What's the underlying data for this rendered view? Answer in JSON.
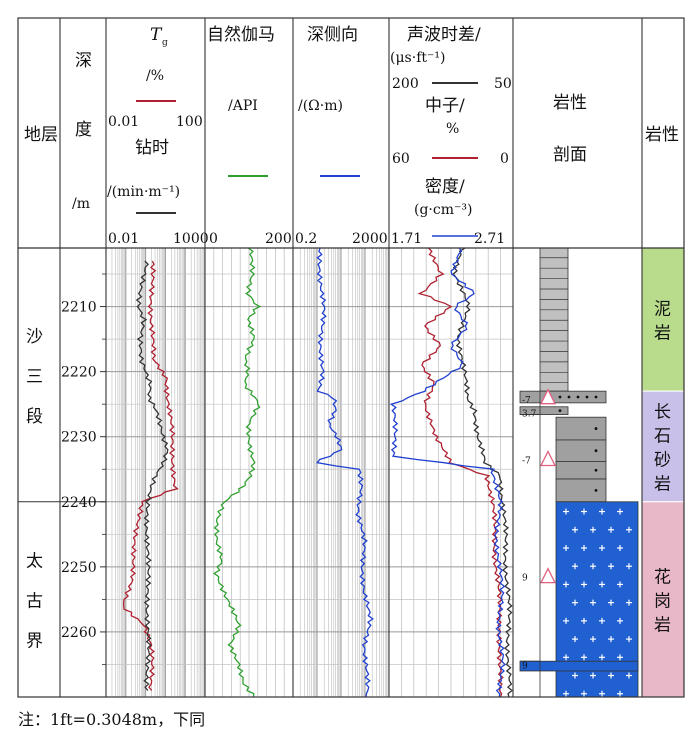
{
  "headers": {
    "strata": "地层",
    "depth": [
      "深",
      "度",
      "/m"
    ],
    "tg_symbol": "T",
    "tg_sub": "g",
    "tg_unit": "/%",
    "tg_range": [
      "0.01",
      "100"
    ],
    "drill_name": "钻时",
    "drill_unit": "/(min·m⁻¹)",
    "drill_range": [
      "0.01",
      "1000"
    ],
    "gr_name": "自然伽马",
    "gr_unit": "/API",
    "gr_range": [
      "0",
      "200"
    ],
    "res_name": "深侧向",
    "res_unit": "/(Ω·m)",
    "res_range": [
      "0.2",
      "2000"
    ],
    "ac_name": "声波时差/",
    "ac_unit": "(μs·ft⁻¹)",
    "ac_range": [
      "200",
      "50"
    ],
    "cnl_name": "中子/",
    "cnl_unit": "%",
    "cnl_range": [
      "60",
      "0"
    ],
    "den_name": "密度/",
    "den_unit": "(g·cm⁻³)",
    "den_range": [
      "1.71",
      "2.71"
    ],
    "profile": [
      "岩性",
      "剖面"
    ],
    "lith": "岩性"
  },
  "strata": [
    {
      "label": [
        "沙",
        "三",
        "段"
      ],
      "top": 2201,
      "bottom": 2240
    },
    {
      "label": [
        "太",
        "古",
        "界"
      ],
      "top": 2240,
      "bottom": 2270
    }
  ],
  "lithology": [
    {
      "label": [
        "泥",
        "岩"
      ],
      "top": 2201,
      "bottom": 2223,
      "color": "#b8dc8c"
    },
    {
      "label": [
        "长",
        "石",
        "砂",
        "岩"
      ],
      "top": 2223,
      "bottom": 2240,
      "color": "#c8c0e8"
    },
    {
      "label": [
        "花",
        "岗",
        "岩"
      ],
      "top": 2240,
      "bottom": 2270,
      "color": "#e8b8c8"
    }
  ],
  "profile_marks": [
    {
      "text": "-7",
      "depth": 2224.2
    },
    {
      "text": "3.7",
      "depth": 2226.3
    },
    {
      "text": "-7",
      "depth": 2233.5
    },
    {
      "text": "9",
      "depth": 2251.5
    },
    {
      "text": "9",
      "depth": 2265
    }
  ],
  "note": "注：1ft=0.3048m，下同",
  "colors": {
    "tg": "#b02030",
    "drill": "#333333",
    "gr": "#30a030",
    "res": "#2040d0",
    "ac": "#333333",
    "cnl": "#b02030",
    "den": "#2040d0",
    "mudstone": "#b8dc8c",
    "sandstone": "#c8c0e8",
    "granite": "#e8b8c8",
    "granite_profile": "#2060d0",
    "sand_profile": "#a0a0a0"
  },
  "chart_data": {
    "type": "line",
    "depth_range": [
      2201,
      2270
    ],
    "depth_ticks": [
      2210,
      2220,
      2230,
      2240,
      2250,
      2260
    ],
    "series": [
      {
        "name": "Tg",
        "unit": "%",
        "range": [
          0.01,
          100
        ],
        "log": true,
        "track": 1,
        "points": [
          [
            2203,
            0.7
          ],
          [
            2210,
            0.7
          ],
          [
            2218,
            0.75
          ],
          [
            2221,
            3.0
          ],
          [
            2226,
            3.5
          ],
          [
            2230,
            4.5
          ],
          [
            2234,
            5.5
          ],
          [
            2238,
            6.0
          ],
          [
            2240,
            0.25
          ],
          [
            2243,
            0.2
          ],
          [
            2247,
            0.15
          ],
          [
            2252,
            0.1
          ],
          [
            2256,
            0.05
          ],
          [
            2259,
            0.4
          ],
          [
            2262,
            0.6
          ],
          [
            2266,
            0.7
          ],
          [
            2269,
            0.7
          ]
        ]
      },
      {
        "name": "钻时",
        "unit": "min/m",
        "range": [
          0.01,
          1000
        ],
        "log": true,
        "track": 1,
        "points": [
          [
            2203,
            1.0
          ],
          [
            2205,
            0.8
          ],
          [
            2208,
            0.6
          ],
          [
            2210,
            0.5
          ],
          [
            2212,
            0.8
          ],
          [
            2215,
            0.45
          ],
          [
            2218,
            0.6
          ],
          [
            2220,
            1.2
          ],
          [
            2222,
            2.0
          ],
          [
            2224,
            1.4
          ],
          [
            2226,
            3.0
          ],
          [
            2229,
            6.0
          ],
          [
            2232,
            15.0
          ],
          [
            2234,
            9.0
          ],
          [
            2236,
            3.0
          ],
          [
            2238,
            1.5
          ],
          [
            2240,
            1.2
          ],
          [
            2245,
            1.3
          ],
          [
            2250,
            1.2
          ],
          [
            2255,
            1.4
          ],
          [
            2260,
            1.2
          ],
          [
            2265,
            1.3
          ],
          [
            2269,
            1.3
          ]
        ]
      },
      {
        "name": "自然伽马",
        "unit": "API",
        "range": [
          0,
          200
        ],
        "log": false,
        "track": 2,
        "points": [
          [
            2201,
            100
          ],
          [
            2205,
            110
          ],
          [
            2208,
            100
          ],
          [
            2210,
            120
          ],
          [
            2212,
            95
          ],
          [
            2215,
            110
          ],
          [
            2218,
            95
          ],
          [
            2220,
            100
          ],
          [
            2222,
            90
          ],
          [
            2225,
            120
          ],
          [
            2228,
            100
          ],
          [
            2232,
            105
          ],
          [
            2234,
            110
          ],
          [
            2236,
            100
          ],
          [
            2238,
            80
          ],
          [
            2240,
            45
          ],
          [
            2243,
            30
          ],
          [
            2246,
            25
          ],
          [
            2249,
            35
          ],
          [
            2251,
            25
          ],
          [
            2253,
            40
          ],
          [
            2256,
            60
          ],
          [
            2259,
            75
          ],
          [
            2262,
            55
          ],
          [
            2265,
            80
          ],
          [
            2268,
            90
          ],
          [
            2270,
            110
          ]
        ]
      },
      {
        "name": "深侧向",
        "unit": "Ω·m",
        "range": [
          0.2,
          2000
        ],
        "log": true,
        "track": 3,
        "points": [
          [
            2201,
            2.5
          ],
          [
            2206,
            3.0
          ],
          [
            2210,
            3.5
          ],
          [
            2215,
            3.0
          ],
          [
            2220,
            3.5
          ],
          [
            2223,
            2.0
          ],
          [
            2224,
            9.0
          ],
          [
            2226,
            12.0
          ],
          [
            2228,
            7.0
          ],
          [
            2230,
            15.0
          ],
          [
            2232,
            20.0
          ],
          [
            2234,
            1.5
          ],
          [
            2235,
            100.0
          ],
          [
            2238,
            150.0
          ],
          [
            2242,
            110.0
          ],
          [
            2246,
            170.0
          ],
          [
            2250,
            160.0
          ],
          [
            2254,
            200.0
          ],
          [
            2258,
            300.0
          ],
          [
            2262,
            200.0
          ],
          [
            2266,
            260.0
          ],
          [
            2270,
            220.0
          ]
        ]
      },
      {
        "name": "声波时差",
        "unit": "μs/ft",
        "range": [
          200,
          50
        ],
        "track": 4,
        "points": [
          [
            2201,
            110
          ],
          [
            2205,
            120
          ],
          [
            2210,
            105
          ],
          [
            2215,
            115
          ],
          [
            2220,
            110
          ],
          [
            2224,
            105
          ],
          [
            2226,
            95
          ],
          [
            2230,
            93
          ],
          [
            2234,
            85
          ],
          [
            2236,
            65
          ],
          [
            2240,
            62
          ],
          [
            2245,
            60
          ],
          [
            2250,
            58
          ],
          [
            2255,
            56
          ],
          [
            2260,
            55
          ],
          [
            2265,
            56
          ],
          [
            2270,
            55
          ]
        ]
      },
      {
        "name": "中子",
        "unit": "%",
        "range": [
          60,
          0
        ],
        "track": 4,
        "points": [
          [
            2201,
            40
          ],
          [
            2205,
            35
          ],
          [
            2208,
            45
          ],
          [
            2210,
            30
          ],
          [
            2213,
            42
          ],
          [
            2216,
            35
          ],
          [
            2219,
            45
          ],
          [
            2222,
            38
          ],
          [
            2225,
            42
          ],
          [
            2230,
            38
          ],
          [
            2234,
            30
          ],
          [
            2236,
            12
          ],
          [
            2240,
            10
          ],
          [
            2245,
            9
          ],
          [
            2250,
            8
          ],
          [
            2255,
            7
          ],
          [
            2260,
            6
          ],
          [
            2265,
            7
          ],
          [
            2270,
            6
          ]
        ]
      },
      {
        "name": "密度",
        "unit": "g/cm³",
        "range": [
          1.71,
          2.71
        ],
        "track": 4,
        "points": [
          [
            2201,
            2.3
          ],
          [
            2205,
            2.2
          ],
          [
            2208,
            2.4
          ],
          [
            2210,
            2.25
          ],
          [
            2213,
            2.35
          ],
          [
            2216,
            2.2
          ],
          [
            2219,
            2.3
          ],
          [
            2223,
            2.0
          ],
          [
            2225,
            1.75
          ],
          [
            2233,
            1.75
          ],
          [
            2235,
            2.55
          ],
          [
            2240,
            2.6
          ],
          [
            2245,
            2.58
          ],
          [
            2250,
            2.6
          ],
          [
            2255,
            2.62
          ],
          [
            2260,
            2.6
          ],
          [
            2265,
            2.62
          ],
          [
            2270,
            2.6
          ]
        ]
      }
    ]
  }
}
